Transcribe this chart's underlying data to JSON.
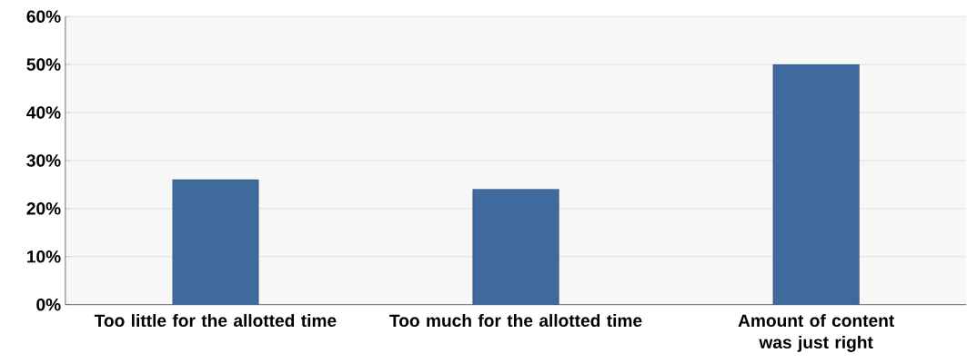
{
  "chart_data": {
    "type": "bar",
    "categories": [
      "Too little for the allotted time",
      "Too much for the allotted time",
      "Amount of content was just right"
    ],
    "values": [
      26,
      24,
      50
    ],
    "color": "#3f6a9e",
    "ylim": [
      0,
      60
    ],
    "yticks": [
      {
        "value": 0,
        "label": "0%"
      },
      {
        "value": 10,
        "label": "10%"
      },
      {
        "value": 20,
        "label": "20%"
      },
      {
        "value": 30,
        "label": "30%"
      },
      {
        "value": 40,
        "label": "40%"
      },
      {
        "value": 50,
        "label": "50%"
      },
      {
        "value": 60,
        "label": "60%"
      }
    ],
    "grid": "y"
  }
}
